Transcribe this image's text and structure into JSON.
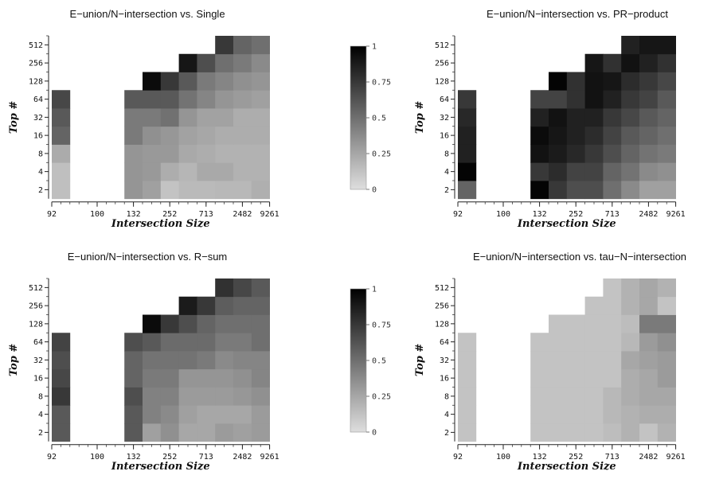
{
  "chart_data": [
    {
      "type": "heatmap",
      "title": "E−union/N−intersection vs. Single",
      "xlabel": "Intersection Size",
      "ylabel": "Top #",
      "x_tick_labels": [
        "92",
        "100",
        "132",
        "252",
        "713",
        "2482",
        "9261"
      ],
      "y_tick_labels": [
        "2",
        "4",
        "8",
        "16",
        "32",
        "64",
        "128",
        "256",
        "512"
      ],
      "value_range": [
        0,
        1
      ],
      "grid": false,
      "rows": [
        [
          0.14,
          null,
          null,
          null,
          0.33,
          0.28,
          0.12,
          0.16,
          0.16,
          0.17,
          0.17,
          0.21
        ],
        [
          0.14,
          null,
          null,
          null,
          0.33,
          0.31,
          0.22,
          0.18,
          0.24,
          0.24,
          0.2,
          0.2
        ],
        [
          0.23,
          null,
          null,
          null,
          0.33,
          0.31,
          0.31,
          0.24,
          0.22,
          0.2,
          0.2,
          0.2
        ],
        [
          0.55,
          null,
          null,
          null,
          0.45,
          0.35,
          0.32,
          0.27,
          0.25,
          0.22,
          0.22,
          0.22
        ],
        [
          0.6,
          null,
          null,
          null,
          0.45,
          0.45,
          0.49,
          0.33,
          0.27,
          0.27,
          0.22,
          0.22
        ],
        [
          0.68,
          null,
          null,
          null,
          0.6,
          0.6,
          0.6,
          0.48,
          0.4,
          0.33,
          0.3,
          0.28
        ],
        [
          null,
          null,
          null,
          null,
          null,
          0.95,
          0.75,
          0.6,
          0.45,
          0.4,
          0.35,
          0.33
        ],
        [
          null,
          null,
          null,
          null,
          null,
          null,
          null,
          0.9,
          0.65,
          0.5,
          0.45,
          0.38
        ],
        [
          null,
          null,
          null,
          null,
          null,
          null,
          null,
          null,
          null,
          0.75,
          0.55,
          0.5
        ]
      ]
    },
    {
      "type": "heatmap",
      "title": "E−union/N−intersection vs. PR−product",
      "xlabel": "Intersection Size",
      "ylabel": "Top #",
      "x_tick_labels": [
        "92",
        "100",
        "132",
        "252",
        "713",
        "2482",
        "9261"
      ],
      "y_tick_labels": [
        "2",
        "4",
        "8",
        "16",
        "32",
        "64",
        "128",
        "256",
        "512"
      ],
      "value_range": [
        0,
        1
      ],
      "grid": false,
      "rows": [
        [
          0.55,
          null,
          null,
          null,
          0.98,
          0.75,
          0.65,
          0.65,
          0.5,
          0.38,
          0.28,
          0.28
        ],
        [
          0.98,
          null,
          null,
          null,
          0.75,
          0.8,
          0.7,
          0.7,
          0.55,
          0.48,
          0.38,
          0.35
        ],
        [
          0.85,
          null,
          null,
          null,
          0.92,
          0.88,
          0.82,
          0.75,
          0.65,
          0.55,
          0.48,
          0.45
        ],
        [
          0.85,
          null,
          null,
          null,
          0.95,
          0.9,
          0.85,
          0.8,
          0.7,
          0.6,
          0.55,
          0.5
        ],
        [
          0.82,
          null,
          null,
          null,
          0.85,
          0.92,
          0.85,
          0.85,
          0.75,
          0.68,
          0.6,
          0.55
        ],
        [
          0.75,
          null,
          null,
          null,
          0.7,
          0.7,
          0.78,
          0.92,
          0.85,
          0.75,
          0.7,
          0.6
        ],
        [
          null,
          null,
          null,
          null,
          null,
          0.98,
          0.78,
          0.92,
          0.9,
          0.8,
          0.75,
          0.68
        ],
        [
          null,
          null,
          null,
          null,
          null,
          null,
          null,
          0.9,
          0.78,
          0.92,
          0.85,
          0.78
        ],
        [
          null,
          null,
          null,
          null,
          null,
          null,
          null,
          null,
          null,
          0.85,
          0.9,
          0.9
        ]
      ]
    },
    {
      "type": "heatmap",
      "title": "E−union/N−intersection vs. R−sum",
      "xlabel": "Intersection Size",
      "ylabel": "Top #",
      "x_tick_labels": [
        "92",
        "100",
        "132",
        "252",
        "713",
        "2482",
        "9261"
      ],
      "y_tick_labels": [
        "2",
        "4",
        "8",
        "16",
        "32",
        "64",
        "128",
        "256",
        "512"
      ],
      "value_range": [
        0,
        1
      ],
      "grid": false,
      "rows": [
        [
          0.6,
          null,
          null,
          null,
          0.6,
          0.28,
          0.35,
          0.25,
          0.25,
          0.3,
          0.28,
          0.3
        ],
        [
          0.6,
          null,
          null,
          null,
          0.6,
          0.42,
          0.38,
          0.28,
          0.25,
          0.25,
          0.25,
          0.3
        ],
        [
          0.75,
          null,
          null,
          null,
          0.65,
          0.42,
          0.42,
          0.3,
          0.3,
          0.3,
          0.32,
          0.35
        ],
        [
          0.68,
          null,
          null,
          null,
          0.55,
          0.45,
          0.45,
          0.33,
          0.33,
          0.33,
          0.35,
          0.4
        ],
        [
          0.65,
          null,
          null,
          null,
          0.55,
          0.48,
          0.48,
          0.48,
          0.45,
          0.38,
          0.4,
          0.4
        ],
        [
          0.7,
          null,
          null,
          null,
          0.65,
          0.6,
          0.52,
          0.52,
          0.52,
          0.45,
          0.45,
          0.5
        ],
        [
          null,
          null,
          null,
          null,
          null,
          0.95,
          0.75,
          0.65,
          0.55,
          0.5,
          0.5,
          0.5
        ],
        [
          null,
          null,
          null,
          null,
          null,
          null,
          null,
          0.88,
          0.75,
          0.58,
          0.55,
          0.55
        ],
        [
          null,
          null,
          null,
          null,
          null,
          null,
          null,
          null,
          null,
          0.78,
          0.68,
          0.6
        ]
      ]
    },
    {
      "type": "heatmap",
      "title": "E−union/N−intersection vs. tau−N−intersection",
      "xlabel": "Intersection Size",
      "ylabel": "Top #",
      "x_tick_labels": [
        "92",
        "100",
        "132",
        "252",
        "713",
        "2482",
        "9261"
      ],
      "y_tick_labels": [
        "2",
        "4",
        "8",
        "16",
        "32",
        "64",
        "128",
        "256",
        "512"
      ],
      "value_range": [
        0,
        1
      ],
      "grid": false,
      "rows": [
        [
          0.12,
          null,
          null,
          null,
          0.12,
          0.12,
          0.12,
          0.12,
          0.15,
          0.2,
          0.12,
          0.2
        ],
        [
          0.12,
          null,
          null,
          null,
          0.12,
          0.12,
          0.12,
          0.12,
          0.17,
          0.2,
          0.22,
          0.22
        ],
        [
          0.12,
          null,
          null,
          null,
          0.12,
          0.12,
          0.12,
          0.12,
          0.17,
          0.22,
          0.25,
          0.25
        ],
        [
          0.12,
          null,
          null,
          null,
          0.12,
          0.12,
          0.12,
          0.12,
          0.12,
          0.22,
          0.25,
          0.3
        ],
        [
          0.12,
          null,
          null,
          null,
          0.12,
          0.12,
          0.12,
          0.12,
          0.12,
          0.25,
          0.28,
          0.3
        ],
        [
          0.12,
          null,
          null,
          null,
          0.12,
          0.12,
          0.12,
          0.12,
          0.12,
          0.17,
          0.3,
          0.35
        ],
        [
          null,
          null,
          null,
          null,
          null,
          0.12,
          0.12,
          0.12,
          0.12,
          0.15,
          0.45,
          0.45
        ],
        [
          null,
          null,
          null,
          null,
          null,
          null,
          null,
          0.12,
          0.12,
          0.2,
          0.25,
          0.12
        ],
        [
          null,
          null,
          null,
          null,
          null,
          null,
          null,
          null,
          0.12,
          0.2,
          0.25,
          0.2
        ]
      ]
    }
  ],
  "colorbars": [
    {
      "tick_labels": [
        "0",
        "0.25",
        "0.5",
        "0.75",
        "1"
      ],
      "range": [
        0,
        1
      ]
    },
    {
      "tick_labels": [
        "0",
        "0.25",
        "0.5",
        "0.75",
        "1"
      ],
      "range": [
        0,
        1
      ]
    }
  ]
}
